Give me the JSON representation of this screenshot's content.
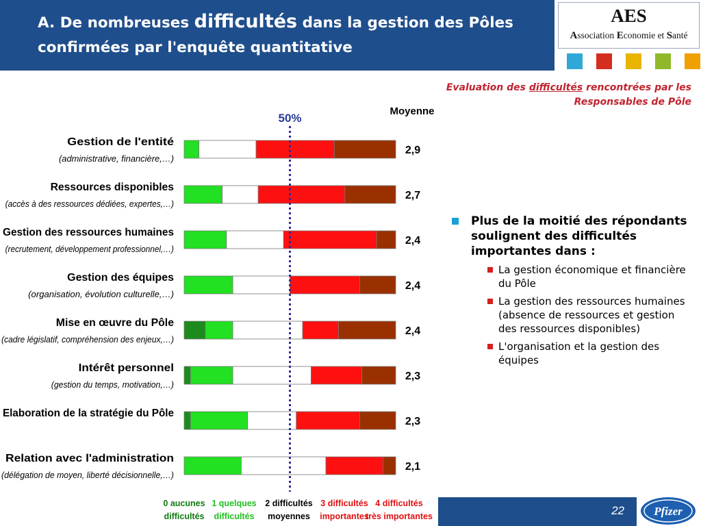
{
  "header": {
    "title_part1": "A. De nombreuses ",
    "title_emph": "difficultés",
    "title_part2": " dans la gestion des Pôles confirmées par l'enquête quantitative"
  },
  "logo": {
    "acronym": "AES",
    "full_name_parts": [
      "A",
      "ssociation ",
      "E",
      "conomie et ",
      "S",
      "anté"
    ],
    "square_colors": [
      "#2fa8d8",
      "#d42e1e",
      "#e8b400",
      "#8fb82a",
      "#f0a000"
    ]
  },
  "subtitle": {
    "line_prefix": "Evaluation des ",
    "emph": "difficultés",
    "line_suffix": " rencontrées par les Responsables de Pôle"
  },
  "chart_data": {
    "type": "bar",
    "stacked": true,
    "orientation": "horizontal",
    "units": "%",
    "xlim": [
      0,
      100
    ],
    "reference_line": {
      "value": 50,
      "label": "50%"
    },
    "mean_label": "Moyenne",
    "categories": [
      {
        "label": "Gestion de l'entité",
        "sub": "(administrative, financière,…)",
        "mean": "2,9"
      },
      {
        "label": "Ressources disponibles",
        "sub": "(accès à des ressources dédiées, expertes,…)",
        "mean": "2,7"
      },
      {
        "label": "Gestion des ressources humaines",
        "sub": "(recrutement, développement professionnel,…)",
        "mean": "2,4"
      },
      {
        "label": "Gestion des équipes",
        "sub": "(organisation, évolution culturelle,…)",
        "mean": "2,4"
      },
      {
        "label": "Mise en œuvre du Pôle",
        "sub": "(cadre législatif, compréhension des enjeux,…)",
        "mean": "2,4"
      },
      {
        "label": "Intérêt personnel",
        "sub": "(gestion du temps, motivation,…)",
        "mean": "2,3"
      },
      {
        "label": "Elaboration de la stratégie du Pôle",
        "sub": "",
        "mean": "2,3"
      },
      {
        "label": "Relation avec l'administration",
        "sub": "(délégation de moyen, liberté décisionnelle,…)",
        "mean": "2,1"
      }
    ],
    "series": [
      {
        "name": "0 aucunes difficultés",
        "color": "#1d8a1d",
        "values": [
          0,
          0,
          0,
          0,
          10,
          3,
          3,
          0
        ]
      },
      {
        "name": "1 quelques difficultés",
        "color": "#22e022",
        "values": [
          7,
          18,
          20,
          23,
          13,
          20,
          27,
          27
        ]
      },
      {
        "name": "2 difficultés moyennes",
        "color": "#ffffff",
        "values": [
          27,
          17,
          27,
          27,
          33,
          37,
          23,
          40
        ]
      },
      {
        "name": "3 difficultés importantes",
        "color": "#ff1010",
        "values": [
          37,
          41,
          44,
          33,
          17,
          24,
          30,
          27
        ]
      },
      {
        "name": "4 difficultés très importantes",
        "color": "#9a3000",
        "values": [
          29,
          24,
          9,
          17,
          27,
          16,
          17,
          6
        ]
      }
    ],
    "legend": [
      {
        "line1": "0 aucunes",
        "line2": "difficultés",
        "color": "#0f7a0f"
      },
      {
        "line1": "1 quelques",
        "line2": "difficultés",
        "color": "#22c022"
      },
      {
        "line1": "2 difficultés",
        "line2": "moyennes",
        "color": "#000000"
      },
      {
        "line1": "3 difficultés",
        "line2": "importantes",
        "color": "#e01010"
      },
      {
        "line1": "4 difficultés",
        "line2": "très importantes",
        "color": "#e01010"
      }
    ]
  },
  "bullets": {
    "main": "Plus de la moitié des répondants soulignent des difficultés importantes dans :",
    "items": [
      "La gestion économique et financière du Pôle",
      "La gestion des ressources humaines (absence de ressources et gestion des ressources disponibles)",
      "L'organisation et la gestion des équipes"
    ]
  },
  "footer": {
    "page_number": "22",
    "brand": "Pfizer"
  }
}
